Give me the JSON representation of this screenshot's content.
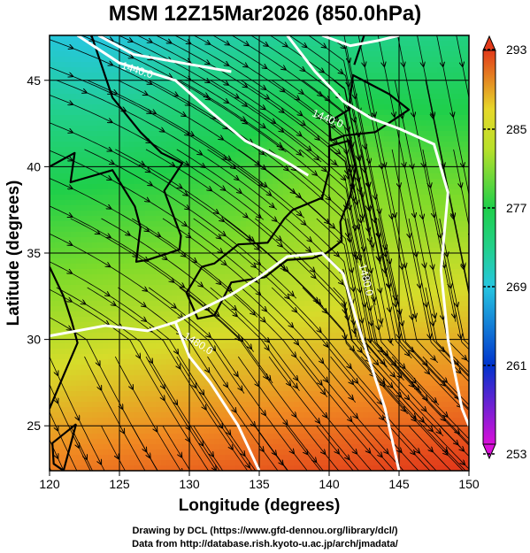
{
  "title": "MSM 12Z15Mar2026 (850.0hPa)",
  "chart_data": {
    "type": "heatmap",
    "title": "MSM 12Z15Mar2026 (850.0hPa)",
    "xlabel": "Longitude (degrees)",
    "ylabel": "Latitude  (degrees)",
    "xlim": [
      120,
      150
    ],
    "ylim": [
      22.4,
      47.6
    ],
    "xticks": [
      120,
      125,
      130,
      135,
      140,
      145,
      150
    ],
    "yticks": [
      25,
      30,
      35,
      40,
      45
    ],
    "grid": true,
    "colorbar": {
      "min": 253,
      "max": 293,
      "ticks": [
        253,
        261,
        269,
        277,
        285,
        293
      ],
      "colors": [
        "#d90fd9",
        "#0033cc",
        "#1f8fe6",
        "#26d6d6",
        "#1fcf4a",
        "#8be02a",
        "#e6d82a",
        "#f08a22",
        "#e23a1a"
      ]
    },
    "contours": {
      "color": "#ffffff",
      "labels": [
        "1440.0",
        "1440.0",
        "1480.0",
        "1480.0"
      ]
    }
  },
  "credits": {
    "line1": "Drawing by DCL (https://www.gfd-dennou.org/library/dcl/)",
    "line2": "Data from http://database.rish.kyoto-u.ac.jp/arch/jmadata/"
  }
}
